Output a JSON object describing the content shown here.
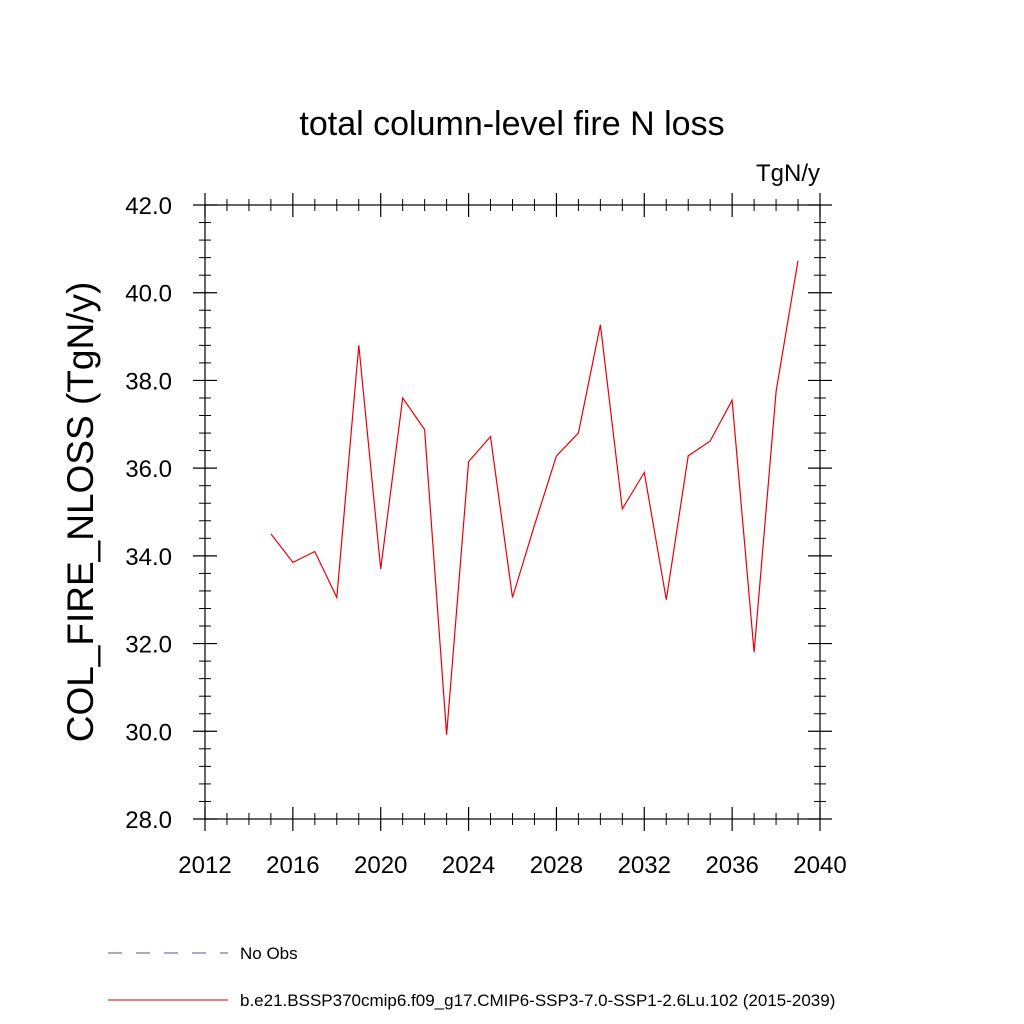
{
  "chart_data": {
    "type": "line",
    "title": "total column-level fire N loss",
    "units_label": "TgN/y",
    "ylabel": "COL_FIRE_NLOSS  (TgN/y)",
    "xlabel": "",
    "xlim": [
      2012,
      2040
    ],
    "ylim": [
      28.0,
      42.0
    ],
    "x_ticks": [
      2012,
      2016,
      2020,
      2024,
      2028,
      2032,
      2036,
      2040
    ],
    "x_tick_labels": [
      "2012",
      "2016",
      "2020",
      "2024",
      "2028",
      "2032",
      "2036",
      "2040"
    ],
    "y_ticks": [
      28,
      30,
      32,
      34,
      36,
      38,
      40,
      42
    ],
    "y_tick_labels": [
      "28.0",
      "30.0",
      "32.0",
      "34.0",
      "36.0",
      "38.0",
      "40.0",
      "42.0"
    ],
    "grid": false,
    "legend_position": "bottom",
    "series": [
      {
        "name": "No Obs",
        "color": "#5a4fa8",
        "dash": "dashed",
        "x": [],
        "y": []
      },
      {
        "name": "b.e21.BSSP370cmip6.f09_g17.CMIP6-SSP3-7.0-SSP1-2.6Lu.102 (2015-2039)",
        "color": "#e8000b",
        "dash": "solid",
        "x": [
          2015,
          2016,
          2017,
          2018,
          2019,
          2020,
          2021,
          2022,
          2023,
          2024,
          2025,
          2026,
          2027,
          2028,
          2029,
          2030,
          2031,
          2032,
          2033,
          2034,
          2035,
          2036,
          2037,
          2038,
          2039
        ],
        "y": [
          34.5,
          33.85,
          34.1,
          33.05,
          38.8,
          33.7,
          37.6,
          36.88,
          29.92,
          36.15,
          36.72,
          33.05,
          34.7,
          36.28,
          36.8,
          39.27,
          35.07,
          35.9,
          33.0,
          36.28,
          36.62,
          37.55,
          31.8,
          37.75,
          40.73
        ]
      }
    ]
  }
}
